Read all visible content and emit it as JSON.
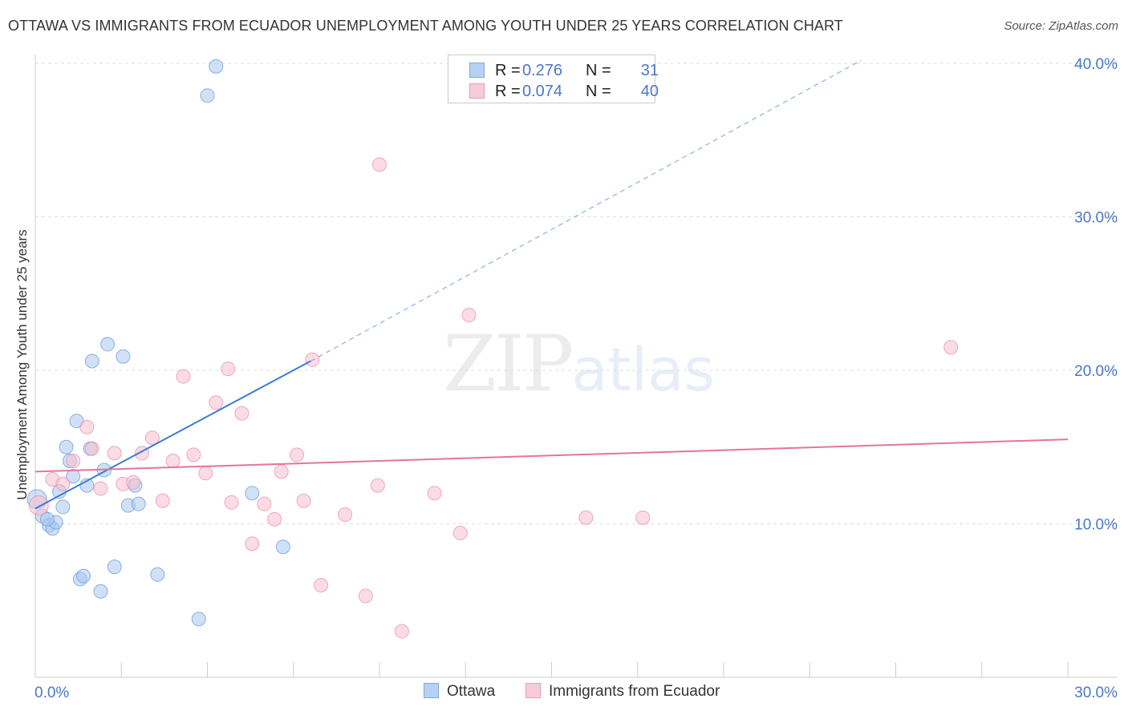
{
  "title": "OTTAWA VS IMMIGRANTS FROM ECUADOR UNEMPLOYMENT AMONG YOUTH UNDER 25 YEARS CORRELATION CHART",
  "source": "Source: ZipAtlas.com",
  "watermark": {
    "zip": "ZIP",
    "atlas": "atlas"
  },
  "colors": {
    "ottawa_fill": "#a9c8f0",
    "ottawa_stroke": "#6a9ad8",
    "ottawa_line": "#3a7bd5",
    "ecuador_fill": "#f7bfd0",
    "ecuador_stroke": "#e890ab",
    "ecuador_line": "#e8739a",
    "tick_label": "#4a78c7",
    "grid": "#dddddd"
  },
  "legend_top": [
    {
      "series": "Ottawa",
      "r_label": "R =",
      "r_value": "0.276",
      "n_label": "N =",
      "n_value": "31"
    },
    {
      "series": "Immigrants from Ecuador",
      "r_label": "R =",
      "r_value": "0.074",
      "n_label": "N =",
      "n_value": "40"
    }
  ],
  "legend_bottom": [
    "Ottawa",
    "Immigrants from Ecuador"
  ],
  "chart_data": {
    "type": "scatter",
    "title": "OTTAWA VS IMMIGRANTS FROM ECUADOR UNEMPLOYMENT AMONG YOUTH UNDER 25 YEARS CORRELATION CHART",
    "xlabel": "",
    "ylabel": "Unemployment Among Youth under 25 years",
    "xlim": [
      0,
      30
    ],
    "ylim": [
      0,
      41
    ],
    "x_tick_labels": [
      {
        "value": 0,
        "label": "0.0%"
      },
      {
        "value": 30,
        "label": "30.0%"
      }
    ],
    "y_tick_labels": [
      {
        "value": 10,
        "label": "10.0%"
      },
      {
        "value": 20,
        "label": "20.0%"
      },
      {
        "value": 30,
        "label": "30.0%"
      },
      {
        "value": 40,
        "label": "40.0%"
      }
    ],
    "series": [
      {
        "name": "Ottawa",
        "r": 0.276,
        "n": 31,
        "points": [
          [
            0.05,
            11.6
          ],
          [
            0.2,
            10.5
          ],
          [
            0.4,
            9.9
          ],
          [
            0.5,
            9.7
          ],
          [
            0.6,
            10.1
          ],
          [
            0.7,
            12.1
          ],
          [
            0.8,
            11.1
          ],
          [
            0.9,
            15.0
          ],
          [
            1.0,
            14.1
          ],
          [
            1.1,
            13.1
          ],
          [
            1.2,
            16.7
          ],
          [
            1.3,
            6.4
          ],
          [
            1.4,
            6.6
          ],
          [
            1.5,
            12.5
          ],
          [
            1.6,
            14.9
          ],
          [
            1.65,
            20.6
          ],
          [
            1.9,
            5.6
          ],
          [
            2.0,
            13.5
          ],
          [
            2.1,
            21.7
          ],
          [
            2.3,
            7.2
          ],
          [
            2.55,
            20.9
          ],
          [
            2.7,
            11.2
          ],
          [
            2.9,
            12.5
          ],
          [
            3.0,
            11.3
          ],
          [
            3.55,
            6.7
          ],
          [
            4.75,
            3.8
          ],
          [
            5.0,
            37.9
          ],
          [
            5.25,
            39.8
          ],
          [
            6.3,
            12.0
          ],
          [
            7.2,
            8.5
          ],
          [
            0.35,
            10.3
          ]
        ],
        "trend": {
          "x0": 0,
          "y0": 11.0,
          "x1": 8.0,
          "y1": 20.6,
          "dashed_to": {
            "x": 24.0,
            "y": 40.2
          }
        }
      },
      {
        "name": "Immigrants from Ecuador",
        "r": 0.074,
        "n": 40,
        "points": [
          [
            0.1,
            11.2
          ],
          [
            0.5,
            12.9
          ],
          [
            0.8,
            12.6
          ],
          [
            1.1,
            14.1
          ],
          [
            1.5,
            16.3
          ],
          [
            1.65,
            14.9
          ],
          [
            1.9,
            12.3
          ],
          [
            2.3,
            14.6
          ],
          [
            2.55,
            12.6
          ],
          [
            2.85,
            12.7
          ],
          [
            3.1,
            14.6
          ],
          [
            3.4,
            15.6
          ],
          [
            3.7,
            11.5
          ],
          [
            4.0,
            14.1
          ],
          [
            4.3,
            19.6
          ],
          [
            4.6,
            14.5
          ],
          [
            4.95,
            13.3
          ],
          [
            5.25,
            17.9
          ],
          [
            5.6,
            20.1
          ],
          [
            5.7,
            11.4
          ],
          [
            6.0,
            17.2
          ],
          [
            6.3,
            8.7
          ],
          [
            6.65,
            11.3
          ],
          [
            6.95,
            10.3
          ],
          [
            7.15,
            13.4
          ],
          [
            7.6,
            14.5
          ],
          [
            7.8,
            11.5
          ],
          [
            8.05,
            20.7
          ],
          [
            8.3,
            6.0
          ],
          [
            9.0,
            10.6
          ],
          [
            9.6,
            5.3
          ],
          [
            9.95,
            12.5
          ],
          [
            10.0,
            33.4
          ],
          [
            10.65,
            3.0
          ],
          [
            11.6,
            12.0
          ],
          [
            12.35,
            9.4
          ],
          [
            12.6,
            23.6
          ],
          [
            16.0,
            10.4
          ],
          [
            17.65,
            10.4
          ],
          [
            26.6,
            21.5
          ]
        ],
        "trend": {
          "x0": 0,
          "y0": 13.4,
          "x1": 30.0,
          "y1": 15.5
        }
      }
    ]
  }
}
